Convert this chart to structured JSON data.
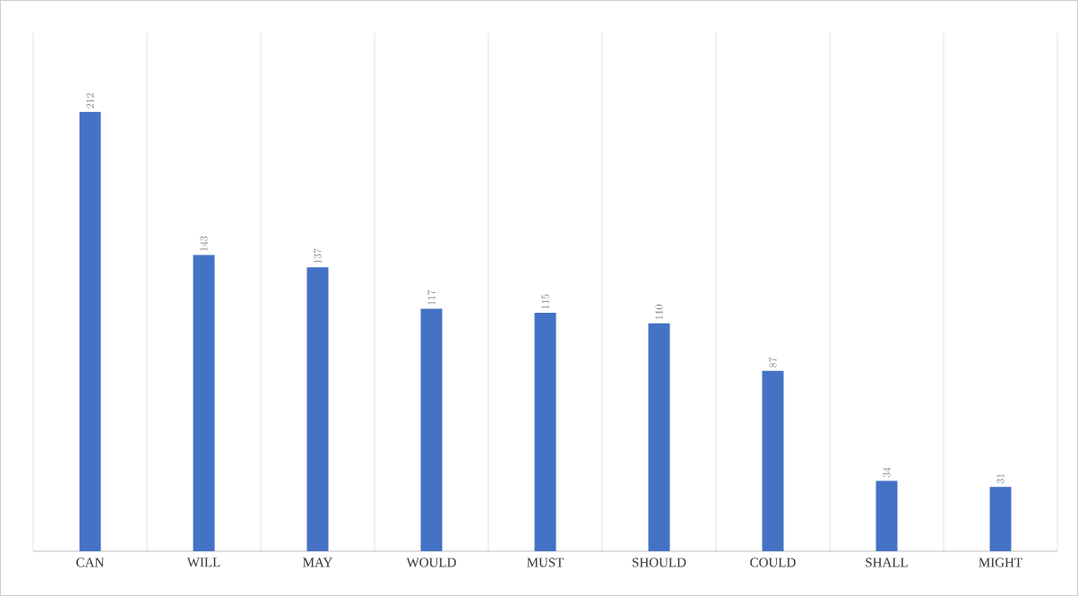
{
  "chart_data": {
    "type": "bar",
    "categories": [
      "CAN",
      "WILL",
      "MAY",
      "WOULD",
      "MUST",
      "SHOULD",
      "COULD",
      "SHALL",
      "MIGHT"
    ],
    "values": [
      212,
      143,
      137,
      117,
      115,
      110,
      87,
      34,
      31
    ],
    "color": "#4472c4",
    "ylim": [
      0,
      250
    ],
    "data_labels": true,
    "grid": "x",
    "tick_labels": "x"
  }
}
